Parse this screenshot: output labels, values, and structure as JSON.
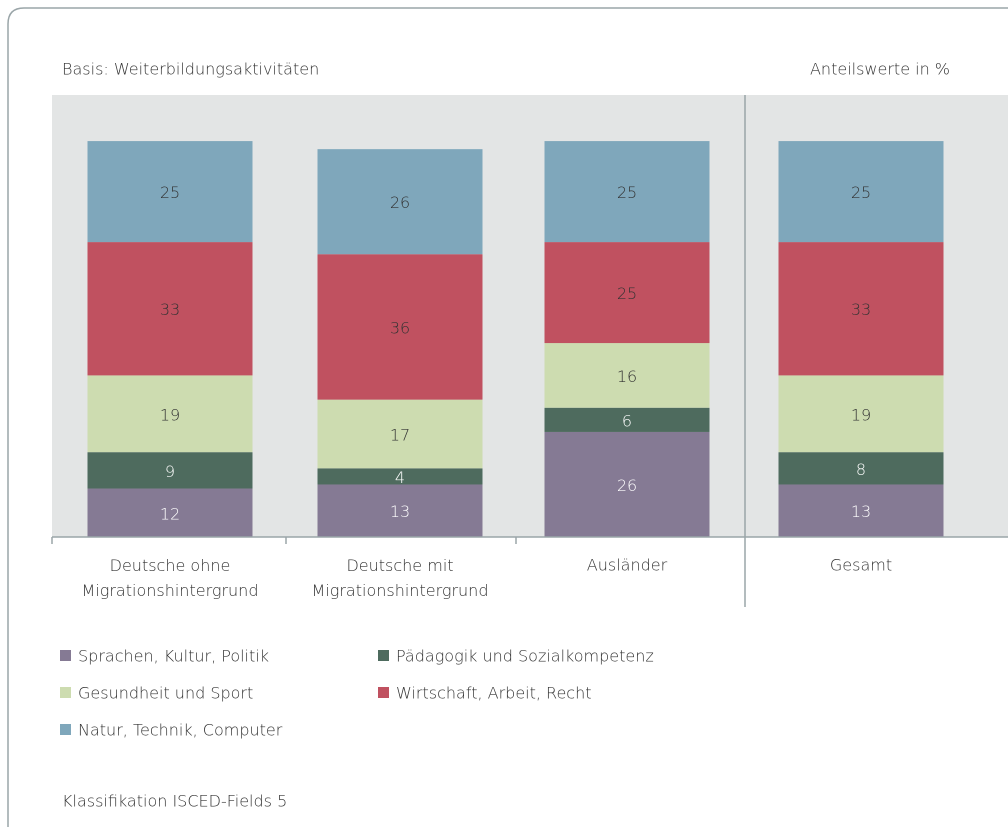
{
  "chart_data": {
    "type": "stacked_bar",
    "subtitle": "Basis:  Weiterbildungsaktivitäten",
    "unit_note": "Anteilswerte in %",
    "categories": [
      "Deutsche ohne Migrationshintergrund",
      "Deutsche mit Migrationshintergrund",
      "Ausländer",
      "Gesamt"
    ],
    "series": [
      {
        "name": "Sprachen, Kultur, Politik",
        "color": "#857a94",
        "values": [
          12,
          13,
          26,
          13
        ]
      },
      {
        "name": "Pädagogik und Sozialkompetenz",
        "color": "#4e6b5e",
        "values": [
          9,
          4,
          6,
          8
        ]
      },
      {
        "name": "Gesundheit und Sport",
        "color": "#cddcb0",
        "values": [
          19,
          17,
          16,
          19
        ]
      },
      {
        "name": "Wirtschaft, Arbeit, Recht",
        "color": "#c05160",
        "values": [
          33,
          36,
          25,
          33
        ]
      },
      {
        "name": "Natur, Technik, Computer",
        "color": "#7fa7bb",
        "values": [
          25,
          26,
          25,
          25
        ]
      }
    ],
    "footnote": "Klassifikation ISCED-Fields 5"
  }
}
